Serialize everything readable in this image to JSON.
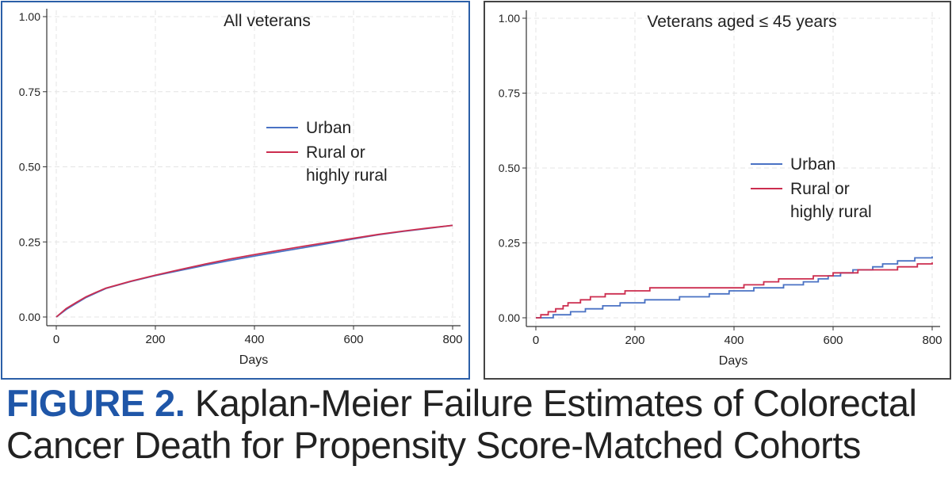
{
  "caption": {
    "figure_label": "FIGURE 2.",
    "line1": "Kaplan-Meier Failure Estimates of Colorectal",
    "line2": "Cancer Death for Propensity Score-Matched Cohorts"
  },
  "colors": {
    "urban": "#4a72c4",
    "rural": "#cc2d4f",
    "left_border": "#2b5fa8",
    "right_border": "#444444",
    "caption_label": "#1f56a8"
  },
  "chart_data": [
    {
      "type": "line",
      "title": "All veterans",
      "xlabel": "Days",
      "ylabel": "",
      "xlim": [
        0,
        800
      ],
      "ylim": [
        0,
        1
      ],
      "xticks": [
        "0",
        "200",
        "400",
        "600",
        "800"
      ],
      "yticks": [
        "0.00",
        "0.25",
        "0.50",
        "0.75",
        "1.00"
      ],
      "grid": true,
      "legend_position": "center-right",
      "series": [
        {
          "name": "Urban",
          "step": false,
          "points": [
            [
              0,
              0
            ],
            [
              20,
              0.025
            ],
            [
              40,
              0.045
            ],
            [
              60,
              0.065
            ],
            [
              80,
              0.08
            ],
            [
              100,
              0.095
            ],
            [
              150,
              0.118
            ],
            [
              200,
              0.138
            ],
            [
              250,
              0.155
            ],
            [
              300,
              0.172
            ],
            [
              350,
              0.188
            ],
            [
              400,
              0.203
            ],
            [
              450,
              0.217
            ],
            [
              500,
              0.231
            ],
            [
              550,
              0.245
            ],
            [
              600,
              0.26
            ],
            [
              650,
              0.274
            ],
            [
              700,
              0.285
            ],
            [
              750,
              0.295
            ],
            [
              800,
              0.305
            ]
          ]
        },
        {
          "name": "Rural or highly rural",
          "step": false,
          "points": [
            [
              0,
              0
            ],
            [
              20,
              0.028
            ],
            [
              40,
              0.048
            ],
            [
              60,
              0.067
            ],
            [
              80,
              0.082
            ],
            [
              100,
              0.096
            ],
            [
              150,
              0.119
            ],
            [
              200,
              0.139
            ],
            [
              250,
              0.158
            ],
            [
              300,
              0.176
            ],
            [
              350,
              0.193
            ],
            [
              400,
              0.208
            ],
            [
              450,
              0.222
            ],
            [
              500,
              0.236
            ],
            [
              550,
              0.249
            ],
            [
              600,
              0.262
            ],
            [
              650,
              0.275
            ],
            [
              700,
              0.286
            ],
            [
              750,
              0.296
            ],
            [
              800,
              0.305
            ]
          ]
        }
      ]
    },
    {
      "type": "line",
      "title": "Veterans aged ≤ 45 years",
      "xlabel": "Days",
      "ylabel": "",
      "xlim": [
        0,
        800
      ],
      "ylim": [
        0,
        1
      ],
      "xticks": [
        "0",
        "200",
        "400",
        "600",
        "800"
      ],
      "yticks": [
        "0.00",
        "0.25",
        "0.50",
        "0.75",
        "1.00"
      ],
      "grid": true,
      "legend_position": "center-right",
      "series": [
        {
          "name": "Urban",
          "step": true,
          "points": [
            [
              0,
              0
            ],
            [
              35,
              0.01
            ],
            [
              70,
              0.02
            ],
            [
              100,
              0.03
            ],
            [
              135,
              0.04
            ],
            [
              170,
              0.05
            ],
            [
              220,
              0.06
            ],
            [
              290,
              0.07
            ],
            [
              350,
              0.08
            ],
            [
              390,
              0.09
            ],
            [
              440,
              0.1
            ],
            [
              500,
              0.11
            ],
            [
              540,
              0.12
            ],
            [
              570,
              0.13
            ],
            [
              590,
              0.14
            ],
            [
              615,
              0.15
            ],
            [
              640,
              0.16
            ],
            [
              680,
              0.17
            ],
            [
              700,
              0.18
            ],
            [
              730,
              0.19
            ],
            [
              765,
              0.2
            ],
            [
              800,
              0.205
            ]
          ]
        },
        {
          "name": "Rural or highly rural",
          "step": true,
          "points": [
            [
              0,
              0
            ],
            [
              10,
              0.01
            ],
            [
              25,
              0.02
            ],
            [
              40,
              0.03
            ],
            [
              55,
              0.04
            ],
            [
              65,
              0.05
            ],
            [
              90,
              0.06
            ],
            [
              110,
              0.07
            ],
            [
              140,
              0.08
            ],
            [
              180,
              0.09
            ],
            [
              230,
              0.1
            ],
            [
              420,
              0.11
            ],
            [
              460,
              0.12
            ],
            [
              490,
              0.13
            ],
            [
              560,
              0.14
            ],
            [
              600,
              0.15
            ],
            [
              650,
              0.16
            ],
            [
              730,
              0.17
            ],
            [
              770,
              0.18
            ],
            [
              800,
              0.185
            ]
          ]
        }
      ]
    }
  ]
}
